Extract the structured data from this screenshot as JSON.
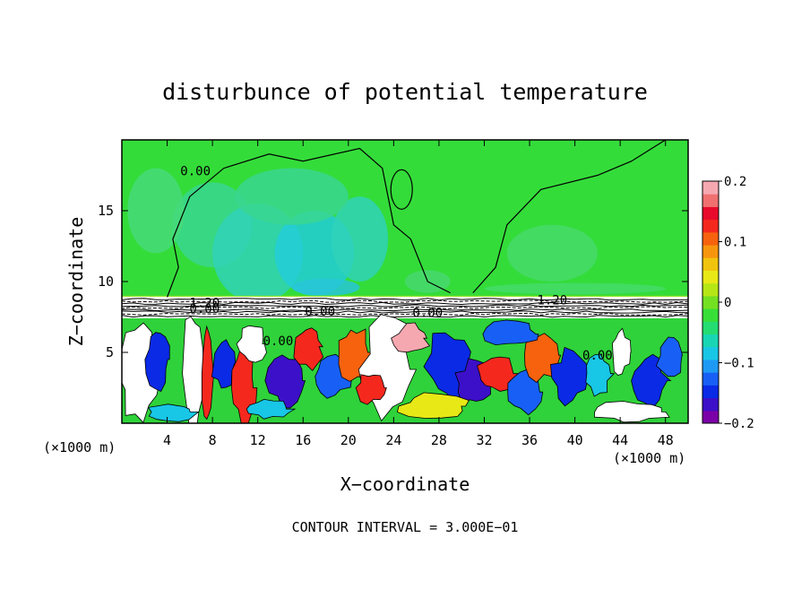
{
  "chart_data": {
    "type": "heatmap",
    "title": "disturbunce of potential temperature",
    "xlabel": "X−coordinate",
    "ylabel": "Z−coordinate",
    "x_unit_label_left": "(×1000 m)",
    "x_unit_label_right": "(×1000 m)",
    "footer": "CONTOUR INTERVAL = 3.000E−01",
    "xlim": [
      0,
      50
    ],
    "ylim": [
      0,
      20
    ],
    "x_ticks": [
      4,
      8,
      12,
      16,
      20,
      24,
      28,
      32,
      36,
      40,
      44,
      48
    ],
    "y_ticks": [
      5,
      10,
      15
    ],
    "colorbar": {
      "range": [
        -0.2,
        0.2
      ],
      "tick_values": [
        0.2,
        0.1,
        0,
        -0.1,
        -0.2
      ],
      "tick_labels": [
        "0.2",
        "0.1",
        "0",
        "−0.1",
        "−0.2"
      ],
      "colors": [
        "#7b00a8",
        "#3c10c8",
        "#0a2ae6",
        "#1860f5",
        "#1e9af5",
        "#18c6e6",
        "#18d6b4",
        "#24dc72",
        "#38de38",
        "#74e022",
        "#b6e616",
        "#e8e816",
        "#f0c40e",
        "#f7960e",
        "#f7620e",
        "#f5281e",
        "#e80a2a",
        "#f07070",
        "#f6a8b0"
      ]
    },
    "layers": [
      {
        "z_range": [
          0,
          7.5
        ],
        "description_value": "strong eddies"
      },
      {
        "z_range": [
          7.5,
          8.9
        ],
        "description_value": "dense contours"
      },
      {
        "z_range": [
          8.9,
          20
        ],
        "description_value": "near zero"
      }
    ],
    "contour_labels": [
      {
        "text": "0.00",
        "x": 6.5,
        "y": 17.5
      },
      {
        "text": "1.20",
        "x": 7.3,
        "y": 8.2
      },
      {
        "text": "0.00",
        "x": 7.3,
        "y": 7.8
      },
      {
        "text": "0.00",
        "x": 17.5,
        "y": 7.6
      },
      {
        "text": "0.00",
        "x": 13.8,
        "y": 5.5
      },
      {
        "text": "0.00",
        "x": 27.0,
        "y": 7.5
      },
      {
        "text": "1.20",
        "x": 38.0,
        "y": 8.4
      },
      {
        "text": "0.00",
        "x": 42.0,
        "y": 4.5
      }
    ]
  }
}
